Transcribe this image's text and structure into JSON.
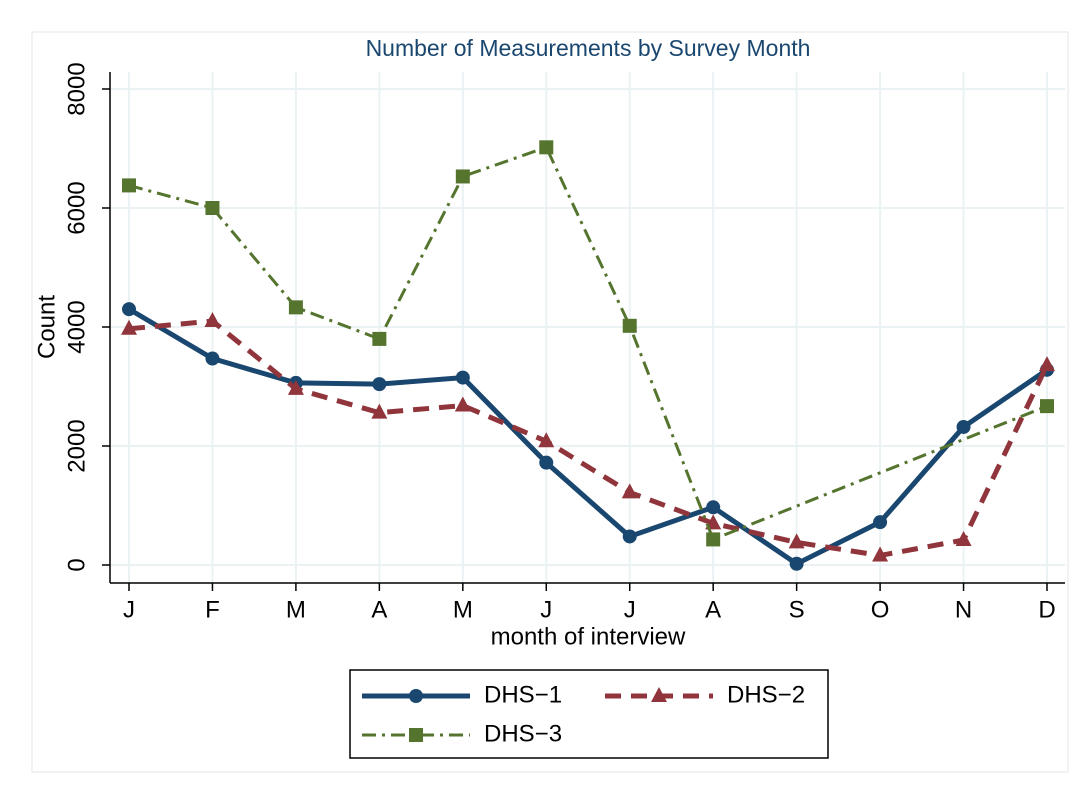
{
  "chart_data": {
    "type": "line",
    "title": "Number of Measurements by Survey Month",
    "x_label": "month of interview",
    "y_label": "Count",
    "x": [
      1,
      2,
      3,
      4,
      5,
      6,
      7,
      8,
      9,
      10,
      11,
      12
    ],
    "xlim": [
      1,
      12
    ],
    "xticks": [
      {
        "value": 1,
        "label": "J"
      },
      {
        "value": 2,
        "label": "F"
      },
      {
        "value": 3,
        "label": "M"
      },
      {
        "value": 4,
        "label": "A"
      },
      {
        "value": 5,
        "label": "M"
      },
      {
        "value": 6,
        "label": "J"
      },
      {
        "value": 7,
        "label": "J"
      },
      {
        "value": 8,
        "label": "A"
      },
      {
        "value": 9,
        "label": "S"
      },
      {
        "value": 10,
        "label": "O"
      },
      {
        "value": 11,
        "label": "N"
      },
      {
        "value": 12,
        "label": "D"
      }
    ],
    "ylim": [
      0,
      8000
    ],
    "yticks": [
      0,
      2000,
      4000,
      6000,
      8000
    ],
    "grid": true,
    "legend": "bottom",
    "series": [
      {
        "name": "DHS−1",
        "color": "#1a476f",
        "marker": "circle",
        "dash": "solid",
        "values": [
          4300,
          3470,
          3060,
          3040,
          3150,
          1720,
          480,
          970,
          20,
          720,
          2320,
          3280
        ]
      },
      {
        "name": "DHS−2",
        "color": "#90353b",
        "marker": "triangle",
        "dash": "dash",
        "values": [
          3970,
          4100,
          2960,
          2560,
          2680,
          2080,
          1220,
          700,
          380,
          160,
          420,
          3360
        ]
      },
      {
        "name": "DHS−3",
        "color": "#55752f",
        "marker": "square",
        "dash": "dashdot",
        "x": [
          1,
          2,
          3,
          4,
          5,
          6,
          7,
          8,
          12
        ],
        "values": [
          6380,
          6000,
          4330,
          3800,
          6530,
          7020,
          4020,
          430,
          2670
        ]
      }
    ]
  }
}
